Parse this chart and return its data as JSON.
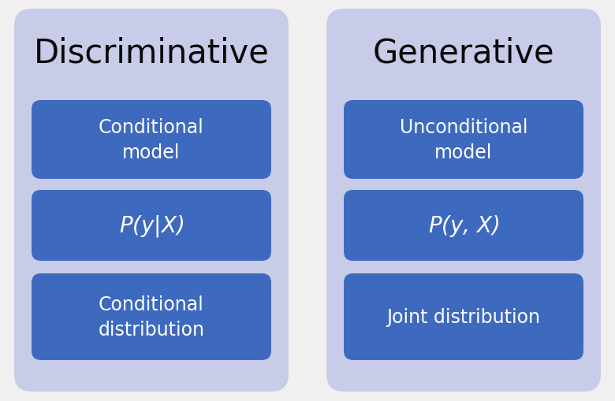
{
  "background_color": "#f0f0f0",
  "panel_bg_color": "#c8cce8",
  "box_color": "#3d6abf",
  "panel_title_color": "#0a0a0a",
  "box_text_color": "#ffffff",
  "figsize": [
    7.8,
    5.1
  ],
  "dpi": 100,
  "left_title": "Discriminative",
  "right_title": "Generative",
  "left_box1": "Conditional\nmodel",
  "left_formula": "P($y$|$X$)",
  "left_box3": "Conditional\ndistribution",
  "right_box1": "Unconditional\nmodel",
  "right_formula": "P($y$, $X$)",
  "right_box3": "Joint distribution"
}
